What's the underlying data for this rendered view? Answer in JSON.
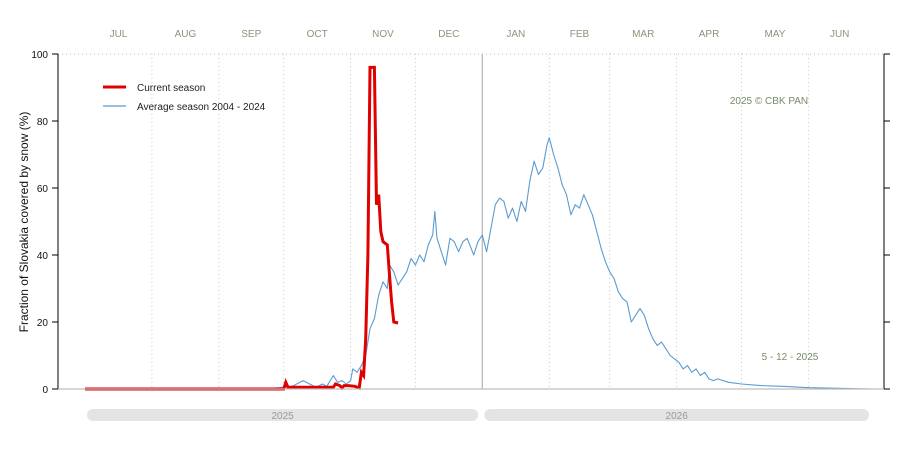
{
  "chart_data": {
    "type": "line",
    "ylabel": "Fraction of  Slovakia  covered by snow (%)",
    "ylim": [
      0,
      100
    ],
    "yticks": [
      0,
      20,
      40,
      60,
      80,
      100
    ],
    "xlim": [
      "2025-07-01",
      "2026-06-30"
    ],
    "months": [
      {
        "label": "JUL",
        "date": "2025-07-01"
      },
      {
        "label": "AUG",
        "date": "2025-08-01"
      },
      {
        "label": "SEP",
        "date": "2025-09-01"
      },
      {
        "label": "OCT",
        "date": "2025-10-01"
      },
      {
        "label": "NOV",
        "date": "2025-11-01"
      },
      {
        "label": "DEC",
        "date": "2025-12-01"
      },
      {
        "label": "JAN",
        "date": "2026-01-01"
      },
      {
        "label": "FEB",
        "date": "2026-02-01"
      },
      {
        "label": "MAR",
        "date": "2026-03-01"
      },
      {
        "label": "APR",
        "date": "2026-04-01"
      },
      {
        "label": "MAY",
        "date": "2026-05-01"
      },
      {
        "label": "JUN",
        "date": "2026-06-01"
      }
    ],
    "years": [
      {
        "label": "2025",
        "from": "2025-07-01",
        "to": "2025-12-31"
      },
      {
        "label": "2026",
        "from": "2026-01-01",
        "to": "2026-06-30"
      }
    ],
    "grid": true,
    "legend_position": "top-left",
    "annotations": {
      "copyright": "2025  © CBK PAN",
      "date": "5 - 12 - 2025"
    },
    "series": [
      {
        "name": "Current season",
        "color": "#e00000",
        "points": [
          [
            "2025-07-01",
            0
          ],
          [
            "2025-10-01",
            0
          ],
          [
            "2025-10-02",
            2
          ],
          [
            "2025-10-03",
            0.5
          ],
          [
            "2025-10-15",
            0.5
          ],
          [
            "2025-10-20",
            0.5
          ],
          [
            "2025-10-24",
            0.5
          ],
          [
            "2025-10-25",
            1.5
          ],
          [
            "2025-10-27",
            1
          ],
          [
            "2025-10-28",
            0.3
          ],
          [
            "2025-10-29",
            1
          ],
          [
            "2025-10-31",
            1
          ],
          [
            "2025-11-03",
            0.8
          ],
          [
            "2025-11-05",
            0.3
          ],
          [
            "2025-11-06",
            5
          ],
          [
            "2025-11-07",
            4
          ],
          [
            "2025-11-08",
            15
          ],
          [
            "2025-11-09",
            40
          ],
          [
            "2025-11-10",
            96
          ],
          [
            "2025-11-12",
            96
          ],
          [
            "2025-11-13",
            55
          ],
          [
            "2025-11-14",
            58
          ],
          [
            "2025-11-15",
            47
          ],
          [
            "2025-11-16",
            44
          ],
          [
            "2025-11-18",
            43
          ],
          [
            "2025-11-19",
            34
          ],
          [
            "2025-11-20",
            26
          ],
          [
            "2025-11-21",
            20
          ],
          [
            "2025-11-23",
            19.7
          ]
        ]
      },
      {
        "name": "Average season 2004 - 2024",
        "color": "#5b9bd0",
        "points": [
          [
            "2025-07-01",
            0
          ],
          [
            "2025-09-15",
            0
          ],
          [
            "2025-09-25",
            0.2
          ],
          [
            "2025-10-01",
            0.5
          ],
          [
            "2025-10-05",
            0.8
          ],
          [
            "2025-10-10",
            2.5
          ],
          [
            "2025-10-13",
            1.5
          ],
          [
            "2025-10-16",
            0.5
          ],
          [
            "2025-10-19",
            1.5
          ],
          [
            "2025-10-21",
            0.8
          ],
          [
            "2025-10-24",
            4
          ],
          [
            "2025-10-26",
            2
          ],
          [
            "2025-10-28",
            2.5
          ],
          [
            "2025-10-30",
            1.5
          ],
          [
            "2025-11-01",
            2.5
          ],
          [
            "2025-11-02",
            6
          ],
          [
            "2025-11-04",
            5
          ],
          [
            "2025-11-06",
            7
          ],
          [
            "2025-11-08",
            10
          ],
          [
            "2025-11-10",
            18
          ],
          [
            "2025-11-12",
            21
          ],
          [
            "2025-11-14",
            28
          ],
          [
            "2025-11-16",
            32
          ],
          [
            "2025-11-18",
            30
          ],
          [
            "2025-11-19",
            37
          ],
          [
            "2025-11-21",
            35
          ],
          [
            "2025-11-23",
            31
          ],
          [
            "2025-11-25",
            33
          ],
          [
            "2025-11-27",
            35
          ],
          [
            "2025-11-29",
            39
          ],
          [
            "2025-12-01",
            37
          ],
          [
            "2025-12-03",
            40
          ],
          [
            "2025-12-05",
            38
          ],
          [
            "2025-12-07",
            43
          ],
          [
            "2025-12-09",
            46
          ],
          [
            "2025-12-10",
            53
          ],
          [
            "2025-12-11",
            45
          ],
          [
            "2025-12-13",
            41
          ],
          [
            "2025-12-15",
            37
          ],
          [
            "2025-12-17",
            45
          ],
          [
            "2025-12-19",
            44
          ],
          [
            "2025-12-21",
            41
          ],
          [
            "2025-12-23",
            44
          ],
          [
            "2025-12-25",
            45
          ],
          [
            "2025-12-28",
            40
          ],
          [
            "2025-12-30",
            44
          ],
          [
            "2026-01-01",
            46
          ],
          [
            "2026-01-03",
            41
          ],
          [
            "2026-01-05",
            48
          ],
          [
            "2026-01-07",
            55
          ],
          [
            "2026-01-09",
            57
          ],
          [
            "2026-01-11",
            56
          ],
          [
            "2026-01-13",
            51
          ],
          [
            "2026-01-15",
            54
          ],
          [
            "2026-01-17",
            50
          ],
          [
            "2026-01-19",
            56
          ],
          [
            "2026-01-21",
            53
          ],
          [
            "2026-01-23",
            62
          ],
          [
            "2026-01-25",
            68
          ],
          [
            "2026-01-27",
            64
          ],
          [
            "2026-01-29",
            66
          ],
          [
            "2026-01-31",
            73
          ],
          [
            "2026-02-01",
            75
          ],
          [
            "2026-02-03",
            70
          ],
          [
            "2026-02-05",
            66
          ],
          [
            "2026-02-07",
            61
          ],
          [
            "2026-02-09",
            58
          ],
          [
            "2026-02-11",
            52
          ],
          [
            "2026-02-13",
            55
          ],
          [
            "2026-02-15",
            54
          ],
          [
            "2026-02-17",
            58
          ],
          [
            "2026-02-19",
            55
          ],
          [
            "2026-02-21",
            52
          ],
          [
            "2026-02-23",
            47
          ],
          [
            "2026-02-25",
            42
          ],
          [
            "2026-02-27",
            38
          ],
          [
            "2026-03-01",
            35
          ],
          [
            "2026-03-03",
            33
          ],
          [
            "2026-03-05",
            29
          ],
          [
            "2026-03-07",
            27
          ],
          [
            "2026-03-09",
            26
          ],
          [
            "2026-03-11",
            20
          ],
          [
            "2026-03-13",
            22
          ],
          [
            "2026-03-15",
            24
          ],
          [
            "2026-03-17",
            22
          ],
          [
            "2026-03-19",
            18
          ],
          [
            "2026-03-21",
            15
          ],
          [
            "2026-03-23",
            13
          ],
          [
            "2026-03-25",
            14
          ],
          [
            "2026-03-27",
            12
          ],
          [
            "2026-03-29",
            10
          ],
          [
            "2026-03-31",
            9
          ],
          [
            "2026-04-02",
            8
          ],
          [
            "2026-04-04",
            6
          ],
          [
            "2026-04-06",
            7
          ],
          [
            "2026-04-08",
            5
          ],
          [
            "2026-04-10",
            6
          ],
          [
            "2026-04-12",
            4
          ],
          [
            "2026-04-14",
            5
          ],
          [
            "2026-04-16",
            3
          ],
          [
            "2026-04-18",
            2.5
          ],
          [
            "2026-04-20",
            3
          ],
          [
            "2026-04-25",
            2
          ],
          [
            "2026-05-01",
            1.5
          ],
          [
            "2026-05-10",
            1
          ],
          [
            "2026-05-20",
            0.8
          ],
          [
            "2026-06-01",
            0.4
          ],
          [
            "2026-06-15",
            0.2
          ],
          [
            "2026-06-30",
            0
          ]
        ]
      }
    ]
  }
}
